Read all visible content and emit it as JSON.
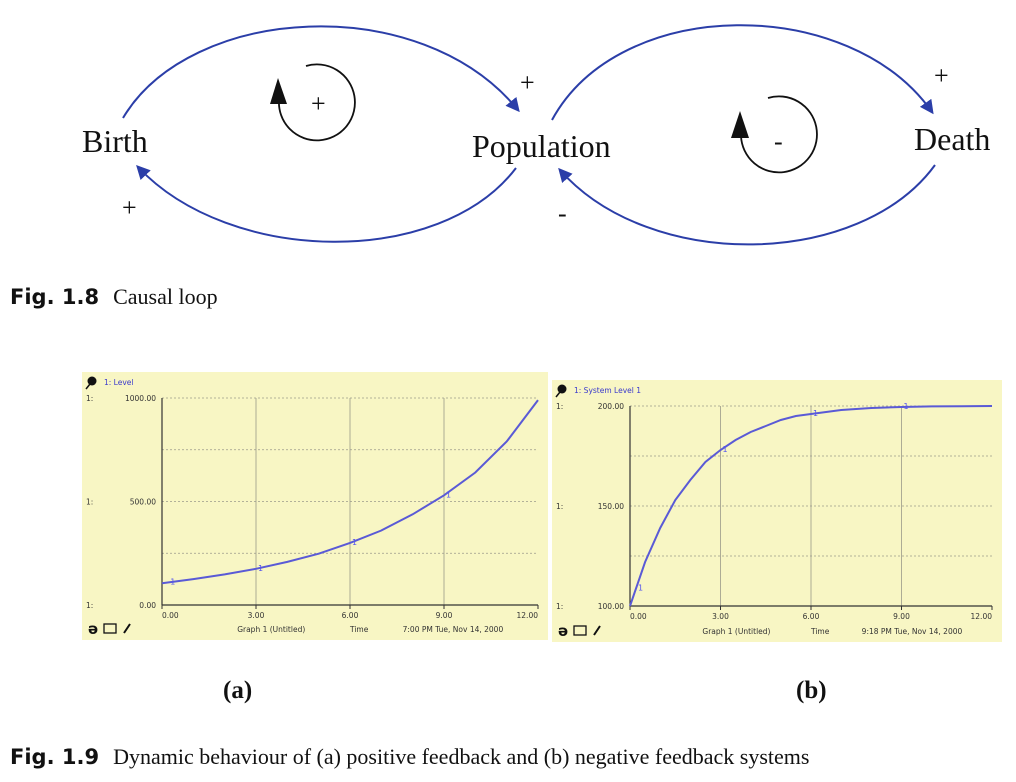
{
  "causal_loop": {
    "nodes": {
      "birth": "Birth",
      "population": "Population",
      "death": "Death"
    },
    "signs": {
      "birth_to_population": "+",
      "population_to_birth": "+",
      "population_to_death": "+",
      "death_to_population": "-",
      "left_loop": "+",
      "right_loop": "-"
    },
    "colors": {
      "arrow": "#2b3ea8",
      "loop": "#111111"
    }
  },
  "captions": {
    "fig18": {
      "label": "Fig. 1.8",
      "text": "Causal loop"
    },
    "fig19": {
      "label": "Fig. 1.9",
      "text": "Dynamic behaviour of (a) positive feedback and (b) negative feedback systems"
    }
  },
  "panel_labels": {
    "a": "(a)",
    "b": "(b)"
  },
  "chart_data": [
    {
      "type": "line",
      "series_title": "1: Level",
      "prefix": "1:",
      "y_ticks": [
        "1000.00",
        "500.00",
        "0.00"
      ],
      "x_ticks": [
        "0.00",
        "3.00",
        "6.00",
        "9.00",
        "12.00"
      ],
      "xlim": [
        0,
        12
      ],
      "ylim": [
        0,
        1000
      ],
      "x": [
        0,
        1,
        2,
        3,
        4,
        5,
        6,
        7,
        8,
        9,
        10,
        11,
        12
      ],
      "y": [
        105,
        125,
        148,
        175,
        208,
        248,
        300,
        360,
        438,
        530,
        640,
        790,
        990
      ],
      "markers_x": [
        0.2,
        3.0,
        6.0,
        9.0
      ],
      "footer": {
        "graph": "Graph 1 (Untitled)",
        "axis": "Time",
        "stamp": "7:00 PM  Tue, Nov 14, 2000"
      },
      "grid": true,
      "background": "#f8f6c4",
      "line_color": "#5a5ad6"
    },
    {
      "type": "line",
      "series_title": "1: System Level 1",
      "prefix": "1:",
      "y_ticks": [
        "200.00",
        "150.00",
        "100.00"
      ],
      "x_ticks": [
        "0.00",
        "3.00",
        "6.00",
        "9.00",
        "12.00"
      ],
      "xlim": [
        0,
        12
      ],
      "ylim": [
        100,
        200
      ],
      "x": [
        0,
        0.5,
        1,
        1.5,
        2,
        2.5,
        3,
        3.5,
        4,
        4.5,
        5,
        5.5,
        6,
        7,
        8,
        9,
        10,
        11,
        12
      ],
      "y": [
        100,
        122,
        139,
        153,
        163,
        172,
        178,
        183,
        187,
        190,
        193,
        195,
        196,
        198,
        199,
        199.5,
        199.8,
        199.9,
        200
      ],
      "markers_x": [
        0.2,
        3.0,
        6.0,
        9.0
      ],
      "footer": {
        "graph": "Graph 1 (Untitled)",
        "axis": "Time",
        "stamp": "9:18 PM  Tue, Nov 14, 2000"
      },
      "grid": true,
      "background": "#f8f6c4",
      "line_color": "#5a5ad6"
    }
  ]
}
